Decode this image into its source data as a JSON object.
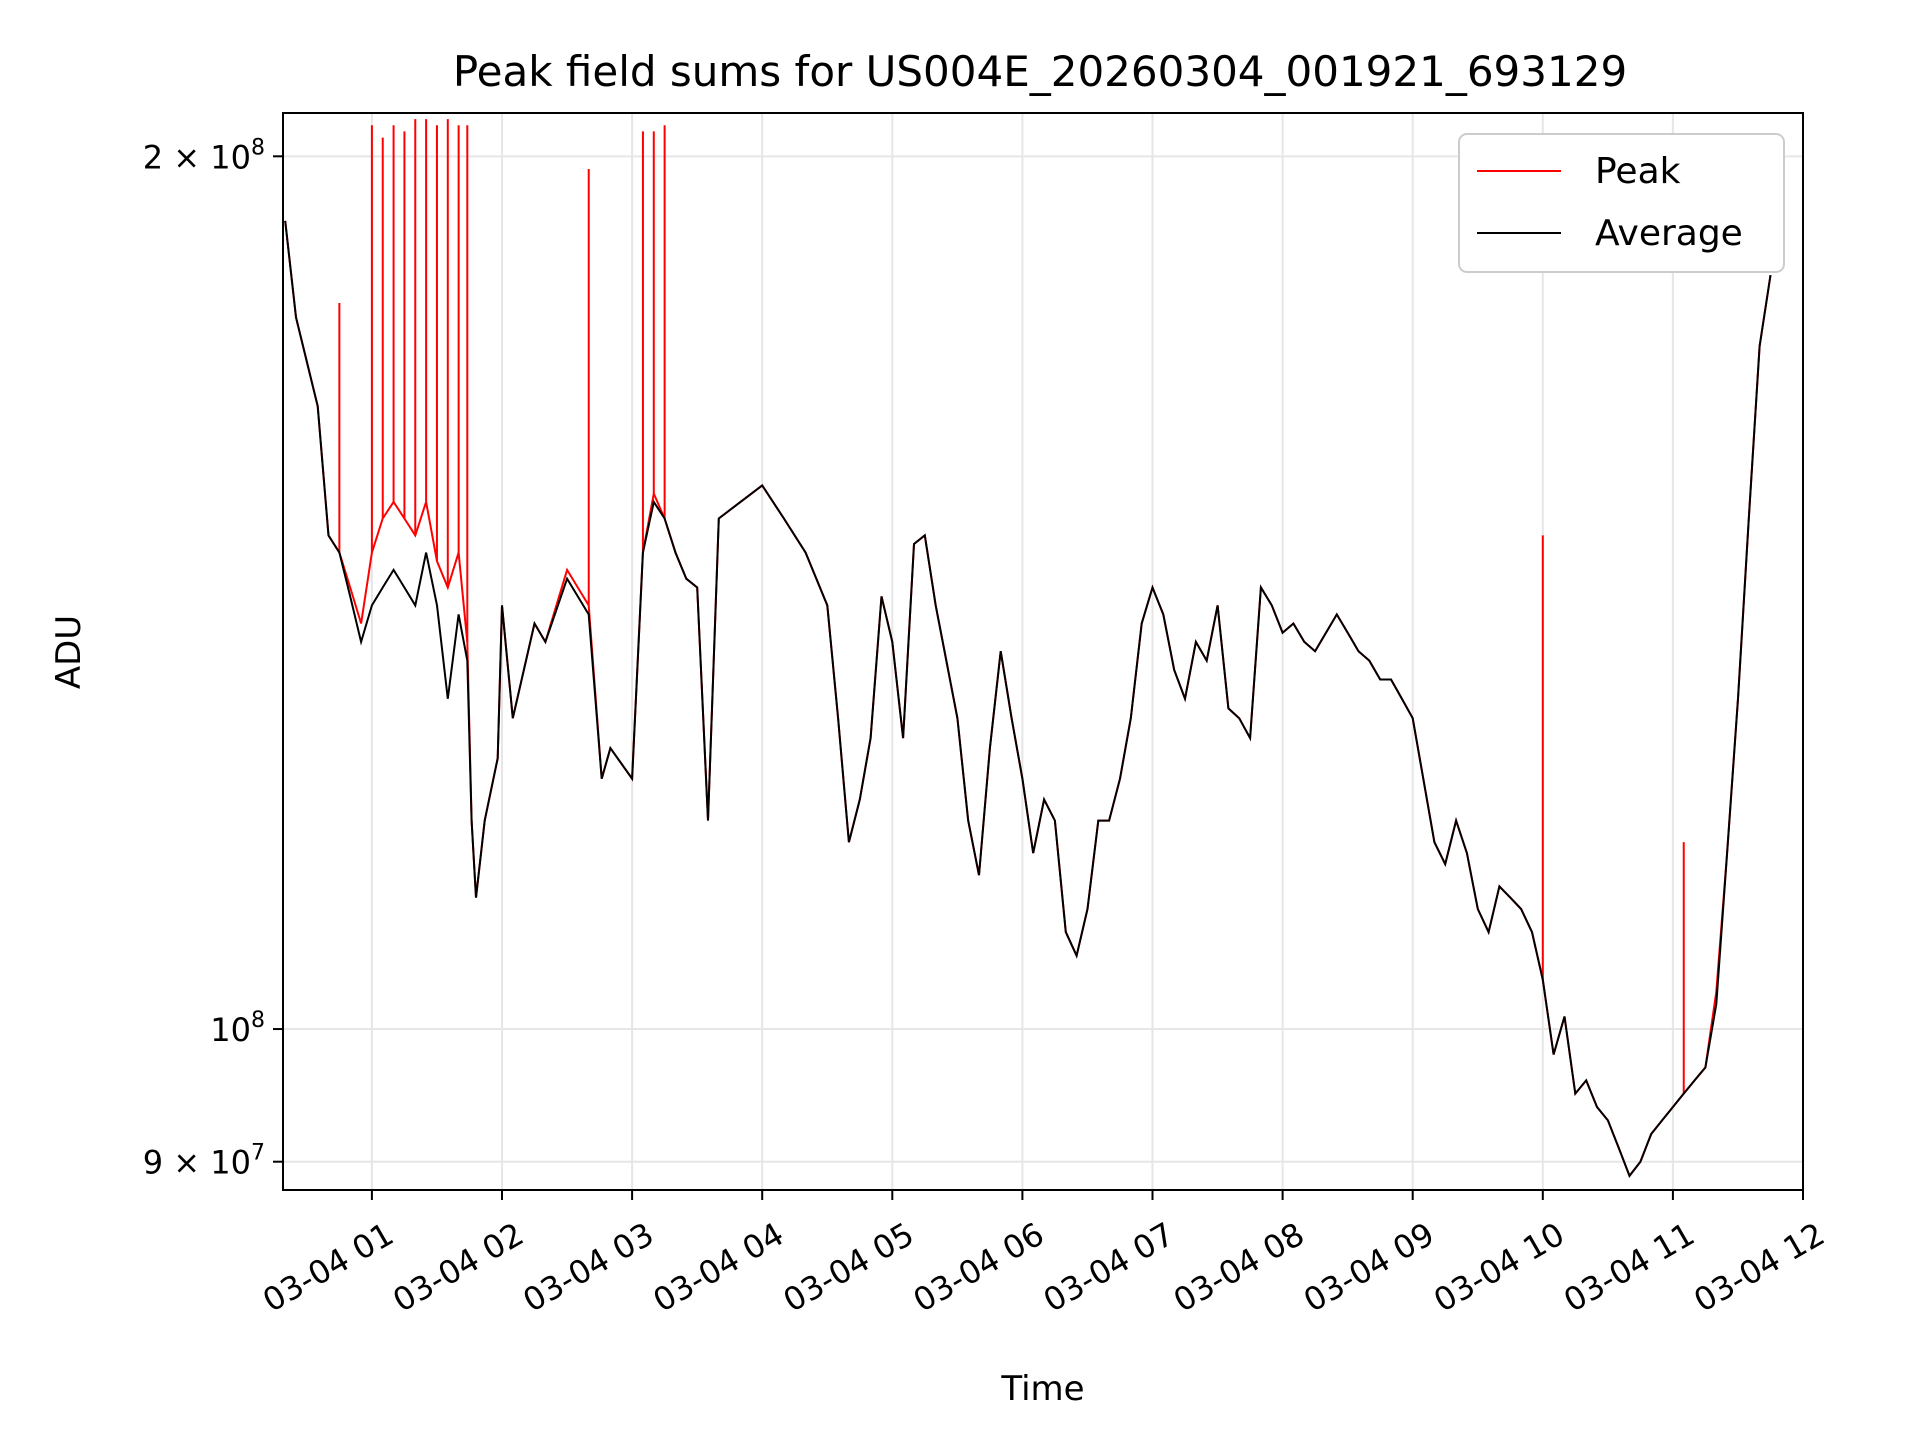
{
  "chart_data": {
    "type": "line",
    "title": "Peak field sums for US004E_20260304_001921_693129",
    "xlabel": "Time",
    "ylabel": "ADU",
    "yscale": "log",
    "xlim": [
      "2026-03-04 00:19",
      "2026-03-04 12:00"
    ],
    "ylim": [
      88000000,
      207000000
    ],
    "grid": true,
    "legend_position": "top-right",
    "x_ticks": [
      "03-04 01",
      "03-04 02",
      "03-04 03",
      "03-04 04",
      "03-04 05",
      "03-04 06",
      "03-04 07",
      "03-04 08",
      "03-04 09",
      "03-04 10",
      "03-04 11",
      "03-04 12"
    ],
    "y_ticks": [
      {
        "value": 200000000,
        "mantissa": "2",
        "exp": "8"
      },
      {
        "value": 100000000,
        "mantissa": "",
        "exp": "8"
      },
      {
        "value": 90000000,
        "mantissa": "9",
        "exp": "7"
      }
    ],
    "series": [
      {
        "name": "Peak",
        "color": "#ff0000",
        "points": [
          [
            "00:20",
            190
          ],
          [
            "00:25",
            176
          ],
          [
            "00:35",
            164
          ],
          [
            "00:40",
            148
          ],
          [
            "00:45",
            146
          ],
          [
            "00:50",
            142
          ],
          [
            "00:55",
            138
          ],
          [
            "01:00",
            146
          ],
          [
            "01:05",
            150
          ],
          [
            "01:10",
            152
          ],
          [
            "01:15",
            150
          ],
          [
            "01:20",
            148
          ],
          [
            "01:25",
            152
          ],
          [
            "01:30",
            145
          ],
          [
            "01:35",
            142
          ],
          [
            "01:40",
            146
          ],
          [
            "01:44",
            136
          ],
          [
            "01:46",
            118
          ],
          [
            "01:48",
            111
          ],
          [
            "01:52",
            118
          ],
          [
            "01:58",
            124
          ],
          [
            "02:00",
            140
          ],
          [
            "02:05",
            128
          ],
          [
            "02:15",
            138
          ],
          [
            "02:20",
            136
          ],
          [
            "02:30",
            144
          ],
          [
            "02:40",
            140
          ],
          [
            "02:46",
            122
          ],
          [
            "02:50",
            125
          ],
          [
            "03:00",
            122
          ],
          [
            "03:05",
            146
          ],
          [
            "03:10",
            153
          ],
          [
            "03:15",
            150
          ],
          [
            "03:20",
            146
          ],
          [
            "03:25",
            143
          ],
          [
            "03:30",
            142
          ],
          [
            "03:35",
            118
          ],
          [
            "03:40",
            150
          ],
          [
            "03:50",
            152
          ],
          [
            "04:00",
            154
          ],
          [
            "04:10",
            150
          ],
          [
            "04:20",
            146
          ],
          [
            "04:30",
            140
          ],
          [
            "04:35",
            128
          ],
          [
            "04:40",
            116
          ],
          [
            "04:45",
            120
          ],
          [
            "04:50",
            126
          ],
          [
            "04:55",
            141
          ],
          [
            "05:00",
            136
          ],
          [
            "05:05",
            126
          ],
          [
            "05:10",
            147
          ],
          [
            "05:15",
            148
          ],
          [
            "05:20",
            140
          ],
          [
            "05:30",
            128
          ],
          [
            "05:35",
            118
          ],
          [
            "05:40",
            113
          ],
          [
            "05:45",
            125
          ],
          [
            "05:50",
            135
          ],
          [
            "05:55",
            128
          ],
          [
            "06:00",
            122
          ],
          [
            "06:05",
            115
          ],
          [
            "06:10",
            120
          ],
          [
            "06:15",
            118
          ],
          [
            "06:20",
            108
          ],
          [
            "06:25",
            106
          ],
          [
            "06:30",
            110
          ],
          [
            "06:35",
            118
          ],
          [
            "06:40",
            118
          ],
          [
            "06:45",
            122
          ],
          [
            "06:50",
            128
          ],
          [
            "06:55",
            138
          ],
          [
            "07:00",
            142
          ],
          [
            "07:05",
            139
          ],
          [
            "07:10",
            133
          ],
          [
            "07:15",
            130
          ],
          [
            "07:20",
            136
          ],
          [
            "07:25",
            134
          ],
          [
            "07:30",
            140
          ],
          [
            "07:35",
            129
          ],
          [
            "07:40",
            128
          ],
          [
            "07:45",
            126
          ],
          [
            "07:50",
            142
          ],
          [
            "07:55",
            140
          ],
          [
            "08:00",
            137
          ],
          [
            "08:05",
            138
          ],
          [
            "08:10",
            136
          ],
          [
            "08:15",
            135
          ],
          [
            "08:20",
            137
          ],
          [
            "08:25",
            139
          ],
          [
            "08:30",
            137
          ],
          [
            "08:35",
            135
          ],
          [
            "08:40",
            134
          ],
          [
            "08:45",
            132
          ],
          [
            "08:50",
            132
          ],
          [
            "08:55",
            130
          ],
          [
            "09:00",
            128
          ],
          [
            "09:10",
            116
          ],
          [
            "09:15",
            114
          ],
          [
            "09:20",
            118
          ],
          [
            "09:25",
            115
          ],
          [
            "09:30",
            110
          ],
          [
            "09:35",
            108
          ],
          [
            "09:40",
            112
          ],
          [
            "09:45",
            111
          ],
          [
            "09:50",
            110
          ],
          [
            "09:55",
            108
          ],
          [
            "10:00",
            104
          ],
          [
            "10:05",
            98
          ],
          [
            "10:10",
            101
          ],
          [
            "10:15",
            95
          ],
          [
            "10:20",
            96
          ],
          [
            "10:25",
            94
          ],
          [
            "10:30",
            93
          ],
          [
            "10:35",
            91
          ],
          [
            "10:40",
            89
          ],
          [
            "10:45",
            90
          ],
          [
            "10:50",
            92
          ],
          [
            "10:55",
            93
          ],
          [
            "11:00",
            94
          ],
          [
            "11:05",
            95
          ],
          [
            "11:10",
            96
          ],
          [
            "11:15",
            97
          ],
          [
            "11:20",
            103
          ],
          [
            "11:25",
            115
          ],
          [
            "11:30",
            130
          ],
          [
            "11:35",
            150
          ],
          [
            "11:40",
            172
          ],
          [
            "11:45",
            182
          ]
        ]
      },
      {
        "name": "Average",
        "color": "#000000",
        "points": [
          [
            "00:20",
            190
          ],
          [
            "00:25",
            176
          ],
          [
            "00:35",
            164
          ],
          [
            "00:40",
            148
          ],
          [
            "00:45",
            146
          ],
          [
            "00:50",
            141
          ],
          [
            "00:55",
            136
          ],
          [
            "01:00",
            140
          ],
          [
            "01:05",
            142
          ],
          [
            "01:10",
            144
          ],
          [
            "01:15",
            142
          ],
          [
            "01:20",
            140
          ],
          [
            "01:25",
            146
          ],
          [
            "01:30",
            140
          ],
          [
            "01:35",
            130
          ],
          [
            "01:40",
            139
          ],
          [
            "01:44",
            134
          ],
          [
            "01:46",
            118
          ],
          [
            "01:48",
            111
          ],
          [
            "01:52",
            118
          ],
          [
            "01:58",
            124
          ],
          [
            "02:00",
            140
          ],
          [
            "02:05",
            128
          ],
          [
            "02:15",
            138
          ],
          [
            "02:20",
            136
          ],
          [
            "02:30",
            143
          ],
          [
            "02:40",
            139
          ],
          [
            "02:46",
            122
          ],
          [
            "02:50",
            125
          ],
          [
            "03:00",
            122
          ],
          [
            "03:05",
            146
          ],
          [
            "03:10",
            152
          ],
          [
            "03:15",
            150
          ],
          [
            "03:20",
            146
          ],
          [
            "03:25",
            143
          ],
          [
            "03:30",
            142
          ],
          [
            "03:35",
            118
          ],
          [
            "03:40",
            150
          ],
          [
            "03:50",
            152
          ],
          [
            "04:00",
            154
          ],
          [
            "04:10",
            150
          ],
          [
            "04:20",
            146
          ],
          [
            "04:30",
            140
          ],
          [
            "04:35",
            128
          ],
          [
            "04:40",
            116
          ],
          [
            "04:45",
            120
          ],
          [
            "04:50",
            126
          ],
          [
            "04:55",
            141
          ],
          [
            "05:00",
            136
          ],
          [
            "05:05",
            126
          ],
          [
            "05:10",
            147
          ],
          [
            "05:15",
            148
          ],
          [
            "05:20",
            140
          ],
          [
            "05:30",
            128
          ],
          [
            "05:35",
            118
          ],
          [
            "05:40",
            113
          ],
          [
            "05:45",
            125
          ],
          [
            "05:50",
            135
          ],
          [
            "05:55",
            128
          ],
          [
            "06:00",
            122
          ],
          [
            "06:05",
            115
          ],
          [
            "06:10",
            120
          ],
          [
            "06:15",
            118
          ],
          [
            "06:20",
            108
          ],
          [
            "06:25",
            106
          ],
          [
            "06:30",
            110
          ],
          [
            "06:35",
            118
          ],
          [
            "06:40",
            118
          ],
          [
            "06:45",
            122
          ],
          [
            "06:50",
            128
          ],
          [
            "06:55",
            138
          ],
          [
            "07:00",
            142
          ],
          [
            "07:05",
            139
          ],
          [
            "07:10",
            133
          ],
          [
            "07:15",
            130
          ],
          [
            "07:20",
            136
          ],
          [
            "07:25",
            134
          ],
          [
            "07:30",
            140
          ],
          [
            "07:35",
            129
          ],
          [
            "07:40",
            128
          ],
          [
            "07:45",
            126
          ],
          [
            "07:50",
            142
          ],
          [
            "07:55",
            140
          ],
          [
            "08:00",
            137
          ],
          [
            "08:05",
            138
          ],
          [
            "08:10",
            136
          ],
          [
            "08:15",
            135
          ],
          [
            "08:20",
            137
          ],
          [
            "08:25",
            139
          ],
          [
            "08:30",
            137
          ],
          [
            "08:35",
            135
          ],
          [
            "08:40",
            134
          ],
          [
            "08:45",
            132
          ],
          [
            "08:50",
            132
          ],
          [
            "08:55",
            130
          ],
          [
            "09:00",
            128
          ],
          [
            "09:10",
            116
          ],
          [
            "09:15",
            114
          ],
          [
            "09:20",
            118
          ],
          [
            "09:25",
            115
          ],
          [
            "09:30",
            110
          ],
          [
            "09:35",
            108
          ],
          [
            "09:40",
            112
          ],
          [
            "09:45",
            111
          ],
          [
            "09:50",
            110
          ],
          [
            "09:55",
            108
          ],
          [
            "10:00",
            104
          ],
          [
            "10:05",
            98
          ],
          [
            "10:10",
            101
          ],
          [
            "10:15",
            95
          ],
          [
            "10:20",
            96
          ],
          [
            "10:25",
            94
          ],
          [
            "10:30",
            93
          ],
          [
            "10:35",
            91
          ],
          [
            "10:40",
            89
          ],
          [
            "10:45",
            90
          ],
          [
            "10:50",
            92
          ],
          [
            "10:55",
            93
          ],
          [
            "11:00",
            94
          ],
          [
            "11:05",
            95
          ],
          [
            "11:10",
            96
          ],
          [
            "11:15",
            97
          ],
          [
            "11:20",
            102
          ],
          [
            "11:25",
            115
          ],
          [
            "11:30",
            130
          ],
          [
            "11:35",
            150
          ],
          [
            "11:40",
            172
          ],
          [
            "11:45",
            182
          ]
        ]
      }
    ],
    "peak_spikes": [
      [
        "00:45",
        178
      ],
      [
        "01:00",
        205
      ],
      [
        "01:05",
        203
      ],
      [
        "01:10",
        205
      ],
      [
        "01:15",
        204
      ],
      [
        "01:20",
        206
      ],
      [
        "01:25",
        206
      ],
      [
        "01:30",
        205
      ],
      [
        "01:35",
        206
      ],
      [
        "01:40",
        205
      ],
      [
        "01:44",
        205
      ],
      [
        "02:40",
        198
      ],
      [
        "03:05",
        204
      ],
      [
        "03:10",
        204
      ],
      [
        "03:15",
        205
      ],
      [
        "10:00",
        148
      ],
      [
        "11:05",
        116
      ]
    ],
    "value_scale": 1000000
  }
}
